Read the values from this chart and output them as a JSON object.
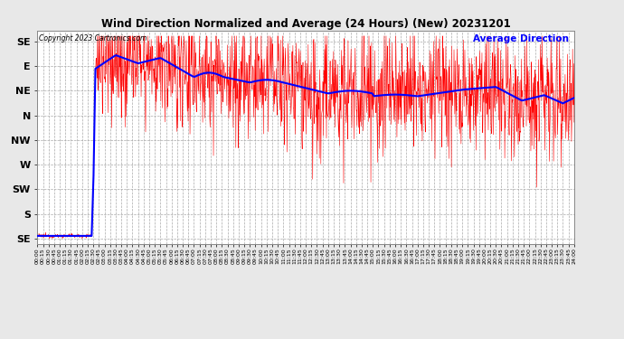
{
  "title": "Wind Direction Normalized and Average (24 Hours) (New) 20231201",
  "copyright_text": "Copyright 2023 Cartronics.com",
  "legend_label": "Average Direction",
  "ytick_labels": [
    "SE",
    "E",
    "NE",
    "N",
    "NW",
    "W",
    "SW",
    "S",
    "SE"
  ],
  "ytick_values": [
    360,
    315,
    270,
    225,
    180,
    135,
    90,
    45,
    0
  ],
  "ymin": -10,
  "ymax": 380,
  "background_color": "#e8e8e8",
  "plot_bg_color": "#ffffff",
  "grid_color": "#aaaaaa",
  "red_color": "#ff0000",
  "blue_color": "#0000ff",
  "title_color": "#000000",
  "copyright_color": "#000000",
  "legend_color": "#0000ff",
  "random_seed": 12345
}
